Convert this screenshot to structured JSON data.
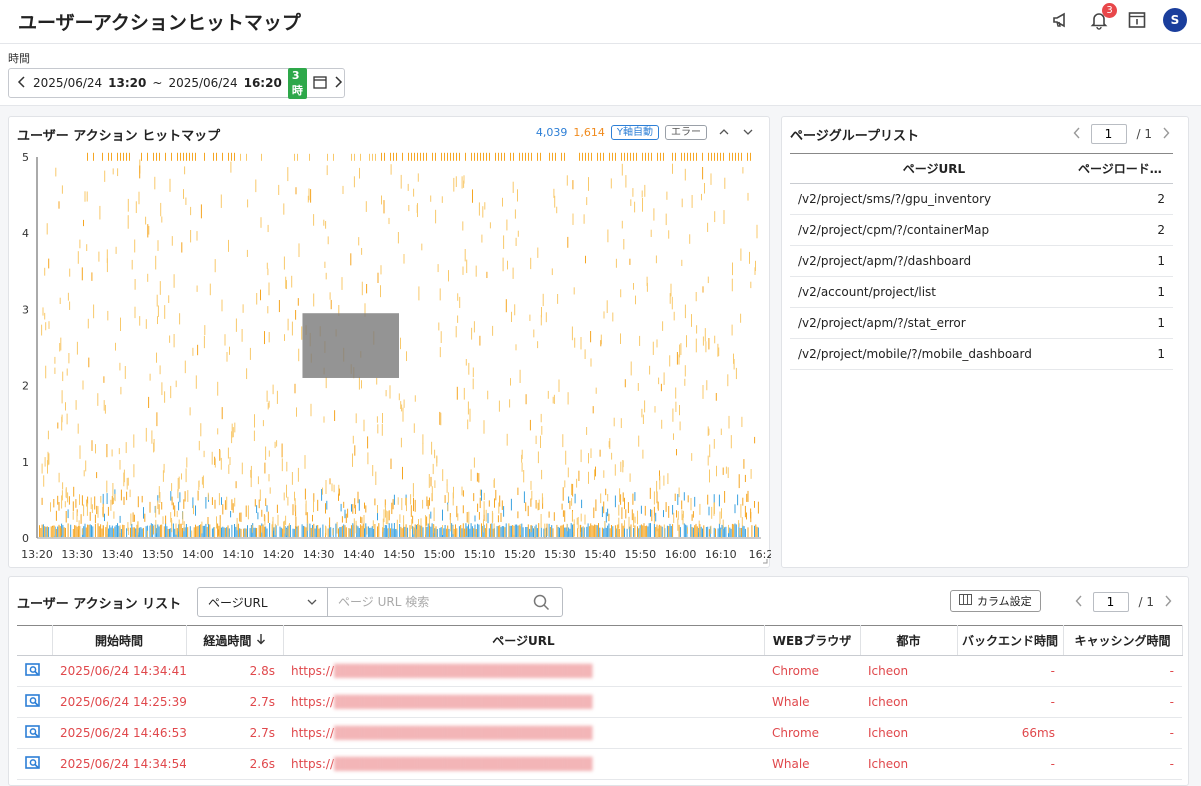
{
  "header": {
    "title": "ユーザーアクションヒットマップ",
    "notification_count": "3",
    "avatar_letter": "S"
  },
  "time": {
    "label": "時間",
    "start_date": "2025/06/24",
    "start_time": "13:20",
    "separator": "~",
    "end_date": "2025/06/24",
    "end_time": "16:20",
    "duration": "3時"
  },
  "heatmap": {
    "title": "ユーザー アクション ヒットマップ",
    "count_blue": "4,039",
    "count_orange": "1,614",
    "y_auto_label": "Y軸自動",
    "error_label": "エラー",
    "colors": {
      "blue": "#3aa2e0",
      "orange": "#f5a623",
      "light_orange": "#f8c96b"
    }
  },
  "chart_data": {
    "type": "heatmap",
    "y_ticks": [
      "0",
      "1",
      "2",
      "3",
      "4",
      "5"
    ],
    "x_ticks": [
      "13:20",
      "13:30",
      "13:40",
      "13:50",
      "14:00",
      "14:10",
      "14:20",
      "14:30",
      "14:40",
      "14:50",
      "15:00",
      "15:10",
      "15:20",
      "15:30",
      "15:40",
      "15:50",
      "16:00",
      "16:10",
      "16:2"
    ],
    "ylim": [
      0,
      5
    ],
    "selection": {
      "x_range": [
        "14:26",
        "14:50"
      ],
      "y_range": [
        2.1,
        2.95
      ]
    }
  },
  "page_group": {
    "title": "ページグループリスト",
    "page": "1",
    "total": "/ 1",
    "col_url": "ページURL",
    "col_load": "ページロード…",
    "rows": [
      {
        "url": "/v2/project/sms/?/gpu_inventory",
        "count": "2"
      },
      {
        "url": "/v2/project/cpm/?/containerMap",
        "count": "2"
      },
      {
        "url": "/v2/project/apm/?/dashboard",
        "count": "1"
      },
      {
        "url": "/v2/account/project/list",
        "count": "1"
      },
      {
        "url": "/v2/project/apm/?/stat_error",
        "count": "1"
      },
      {
        "url": "/v2/project/mobile/?/mobile_dashboard",
        "count": "1"
      }
    ]
  },
  "action_list": {
    "title": "ユーザー アクション リスト",
    "filter_value": "ページURL",
    "search_placeholder": "ページ URL 検索",
    "column_settings": "カラム設定",
    "page": "1",
    "total": "/ 1",
    "columns": {
      "start": "開始時間",
      "elapsed": "経過時間",
      "url": "ページURL",
      "browser": "WEBブラウザ",
      "city": "都市",
      "backend": "バックエンド時間",
      "cache": "キャッシング時間"
    },
    "rows": [
      {
        "start": "2025/06/24 14:34:41",
        "elapsed": "2.8s",
        "url": "https://",
        "browser": "Chrome",
        "city": "Icheon",
        "backend": "-",
        "cache": "-"
      },
      {
        "start": "2025/06/24 14:25:39",
        "elapsed": "2.7s",
        "url": "https://",
        "browser": "Whale",
        "city": "Icheon",
        "backend": "-",
        "cache": "-"
      },
      {
        "start": "2025/06/24 14:46:53",
        "elapsed": "2.7s",
        "url": "https://",
        "browser": "Chrome",
        "city": "Icheon",
        "backend": "66ms",
        "cache": "-"
      },
      {
        "start": "2025/06/24 14:34:54",
        "elapsed": "2.6s",
        "url": "https://",
        "browser": "Whale",
        "city": "Icheon",
        "backend": "-",
        "cache": "-"
      }
    ]
  }
}
